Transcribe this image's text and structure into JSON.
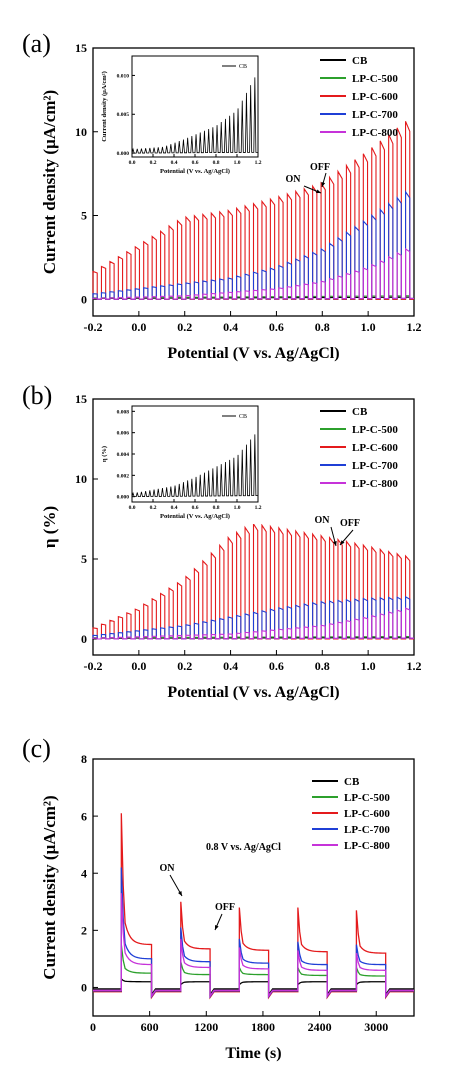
{
  "chart_data": [
    {
      "panel": "(a)",
      "type": "line",
      "xlabel": "Potential (V vs. Ag/AgCl)",
      "ylabel": "Current density (μA/cm²)",
      "xlim": [
        -0.2,
        1.2
      ],
      "ylim": [
        -1,
        15
      ],
      "xticks": [
        -0.2,
        0.0,
        0.2,
        0.4,
        0.6,
        0.8,
        1.0,
        1.2
      ],
      "xtick_labels": [
        "-0.2",
        "0.0",
        "0.2",
        "0.4",
        "0.6",
        "0.8",
        "1.0",
        "1.2"
      ],
      "yticks": [
        0,
        5,
        10,
        15
      ],
      "ytick_labels": [
        "0",
        "5",
        "10",
        "15"
      ],
      "legend_position": "top-right",
      "annotations": [
        {
          "text": "ON"
        },
        {
          "text": "OFF"
        }
      ],
      "chopped": {
        "x_start": -0.2,
        "x_end": 1.2,
        "cycles": 38
      },
      "series": [
        {
          "name": "CB",
          "color": "#000000",
          "on": [
            [
              -0.2,
              0.05
            ],
            [
              1.2,
              0.12
            ]
          ],
          "off": [
            [
              -0.2,
              0.0
            ],
            [
              1.2,
              0.0
            ]
          ]
        },
        {
          "name": "LP-C-500",
          "color": "#2ca02c",
          "on": [
            [
              -0.2,
              0.08
            ],
            [
              1.2,
              0.2
            ]
          ],
          "off": [
            [
              -0.2,
              0.0
            ],
            [
              1.2,
              0.05
            ]
          ]
        },
        {
          "name": "LP-C-600",
          "color": "#e41a1c",
          "on": [
            [
              -0.2,
              1.5
            ],
            [
              0.0,
              3.0
            ],
            [
              0.2,
              4.6
            ],
            [
              0.4,
              5.0
            ],
            [
              0.6,
              5.7
            ],
            [
              0.8,
              6.5
            ],
            [
              1.0,
              8.3
            ],
            [
              1.2,
              10.3
            ]
          ],
          "off": [
            [
              -0.2,
              0.0
            ],
            [
              1.2,
              0.0
            ]
          ]
        },
        {
          "name": "LP-C-700",
          "color": "#1f3fd6",
          "on": [
            [
              -0.2,
              0.3
            ],
            [
              0.0,
              0.6
            ],
            [
              0.2,
              0.9
            ],
            [
              0.4,
              1.2
            ],
            [
              0.6,
              1.8
            ],
            [
              0.8,
              2.8
            ],
            [
              1.0,
              4.5
            ],
            [
              1.2,
              6.3
            ]
          ],
          "off": [
            [
              -0.2,
              0.0
            ],
            [
              1.2,
              0.05
            ]
          ]
        },
        {
          "name": "LP-C-800",
          "color": "#c633d9",
          "on": [
            [
              -0.2,
              0.05
            ],
            [
              0.2,
              0.2
            ],
            [
              0.6,
              0.6
            ],
            [
              0.8,
              1.0
            ],
            [
              1.0,
              1.8
            ],
            [
              1.2,
              3.0
            ]
          ],
          "off": [
            [
              -0.2,
              0.0
            ],
            [
              1.2,
              0.05
            ]
          ]
        }
      ],
      "inset": {
        "xlabel": "Potential (V vs. Ag/AgCl)",
        "ylabel": "Current density (μA/cm²)",
        "xlim": [
          0.0,
          1.2
        ],
        "ylim": [
          -0.0005,
          0.0125
        ],
        "xticks": [
          0.0,
          0.2,
          0.4,
          0.6,
          0.8,
          1.0,
          1.2
        ],
        "xtick_labels": [
          "0.0",
          "0.2",
          "0.4",
          "0.6",
          "0.8",
          "1.0",
          "1.2"
        ],
        "yticks": [
          0.0,
          0.005,
          0.01
        ],
        "ytick_labels": [
          "0.000",
          "0.005",
          "0.010"
        ],
        "legend": "CB",
        "series": [
          {
            "name": "CB",
            "color": "#000000",
            "on": [
              [
                0.0,
                0.0005
              ],
              [
                0.3,
                0.0008
              ],
              [
                0.5,
                0.0018
              ],
              [
                0.8,
                0.0035
              ],
              [
                1.0,
                0.0055
              ],
              [
                1.2,
                0.0105
              ]
            ],
            "off": [
              [
                0.0,
                0.0
              ],
              [
                1.2,
                0.0001
              ]
            ]
          }
        ]
      }
    },
    {
      "panel": "(b)",
      "type": "line",
      "xlabel": "Potential (V vs. Ag/AgCl)",
      "ylabel": "η (%)",
      "xlim": [
        -0.2,
        1.2
      ],
      "ylim": [
        -1,
        15
      ],
      "xticks": [
        -0.2,
        0.0,
        0.2,
        0.4,
        0.6,
        0.8,
        1.0,
        1.2
      ],
      "xtick_labels": [
        "-0.2",
        "0.0",
        "0.2",
        "0.4",
        "0.6",
        "0.8",
        "1.0",
        "1.2"
      ],
      "yticks": [
        0,
        5,
        10,
        15
      ],
      "ytick_labels": [
        "0",
        "5",
        "10",
        "15"
      ],
      "legend_position": "top-right",
      "annotations": [
        {
          "text": "ON"
        },
        {
          "text": "OFF"
        }
      ],
      "chopped": {
        "x_start": -0.2,
        "x_end": 1.2,
        "cycles": 38
      },
      "series": [
        {
          "name": "CB",
          "color": "#000000",
          "on": [
            [
              -0.2,
              0.05
            ],
            [
              1.2,
              0.08
            ]
          ],
          "off": [
            [
              -0.2,
              0.0
            ],
            [
              1.2,
              0.0
            ]
          ]
        },
        {
          "name": "LP-C-500",
          "color": "#2ca02c",
          "on": [
            [
              -0.2,
              0.08
            ],
            [
              1.2,
              0.15
            ]
          ],
          "off": [
            [
              -0.2,
              0.0
            ],
            [
              1.2,
              0.03
            ]
          ]
        },
        {
          "name": "LP-C-600",
          "color": "#e41a1c",
          "on": [
            [
              -0.2,
              0.6
            ],
            [
              0.0,
              1.8
            ],
            [
              0.2,
              3.5
            ],
            [
              0.4,
              6.0
            ],
            [
              0.5,
              6.8
            ],
            [
              0.6,
              6.6
            ],
            [
              0.8,
              6.1
            ],
            [
              1.0,
              5.5
            ],
            [
              1.2,
              4.8
            ]
          ],
          "off": [
            [
              -0.2,
              0.0
            ],
            [
              1.2,
              0.0
            ]
          ]
        },
        {
          "name": "LP-C-700",
          "color": "#1f3fd6",
          "on": [
            [
              -0.2,
              0.2
            ],
            [
              0.2,
              0.8
            ],
            [
              0.4,
              1.3
            ],
            [
              0.6,
              1.8
            ],
            [
              0.8,
              2.2
            ],
            [
              1.0,
              2.4
            ],
            [
              1.2,
              2.5
            ]
          ],
          "off": [
            [
              -0.2,
              0.0
            ],
            [
              1.2,
              0.05
            ]
          ]
        },
        {
          "name": "LP-C-800",
          "color": "#c633d9",
          "on": [
            [
              -0.2,
              0.05
            ],
            [
              0.4,
              0.3
            ],
            [
              0.8,
              0.8
            ],
            [
              1.0,
              1.3
            ],
            [
              1.2,
              1.9
            ]
          ],
          "off": [
            [
              -0.2,
              0.0
            ],
            [
              1.2,
              0.05
            ]
          ]
        }
      ],
      "inset": {
        "xlabel": "Potential (V vs. Ag/AgCl)",
        "ylabel": "η (%)",
        "xlim": [
          0.0,
          1.2
        ],
        "ylim": [
          -0.0005,
          0.0085
        ],
        "xticks": [
          0.0,
          0.2,
          0.4,
          0.6,
          0.8,
          1.0,
          1.2
        ],
        "xtick_labels": [
          "0.0",
          "0.2",
          "0.4",
          "0.6",
          "0.8",
          "1.0",
          "1.2"
        ],
        "yticks": [
          0.0,
          0.002,
          0.004,
          0.006,
          0.008
        ],
        "ytick_labels": [
          "0.000",
          "0.002",
          "0.004",
          "0.006",
          "0.008"
        ],
        "legend": "CB",
        "series": [
          {
            "name": "CB",
            "color": "#000000",
            "on": [
              [
                0.0,
                0.0003
              ],
              [
                0.4,
                0.001
              ],
              [
                0.6,
                0.0018
              ],
              [
                0.8,
                0.0028
              ],
              [
                1.0,
                0.0038
              ],
              [
                1.2,
                0.0062
              ]
            ],
            "off": [
              [
                0.0,
                0.0
              ],
              [
                1.2,
                0.0001
              ]
            ]
          }
        ]
      }
    },
    {
      "panel": "(c)",
      "type": "line",
      "xlabel": "Time (s)",
      "ylabel": "Current density (μA/cm²)",
      "xlim": [
        0,
        3400
      ],
      "ylim": [
        -1,
        8
      ],
      "xticks": [
        0,
        600,
        1200,
        1800,
        2400,
        3000
      ],
      "xtick_labels": [
        "0",
        "600",
        "1200",
        "1800",
        "2400",
        "3000"
      ],
      "yticks": [
        0,
        2,
        4,
        6,
        8
      ],
      "ytick_labels": [
        "0",
        "2",
        "4",
        "6",
        "8"
      ],
      "legend_position": "top-right",
      "annotations": [
        {
          "text": "0.8 V vs. Ag/AgCl"
        },
        {
          "text": "ON"
        },
        {
          "text": "OFF"
        }
      ],
      "on_intervals": [
        [
          300,
          620
        ],
        [
          930,
          1240
        ],
        [
          1550,
          1860
        ],
        [
          2170,
          2480
        ],
        [
          2790,
          3100
        ]
      ],
      "series": [
        {
          "name": "CB",
          "color": "#000000",
          "spike": [
            0.3,
            0.1,
            0.1,
            0.1,
            0.1
          ],
          "plateau": [
            0.2,
            0.2,
            0.2,
            0.2,
            0.2
          ],
          "dark": -0.05
        },
        {
          "name": "LP-C-500",
          "color": "#2ca02c",
          "spike": [
            1.5,
            0.9,
            0.7,
            0.7,
            0.7
          ],
          "plateau": [
            0.5,
            0.45,
            0.45,
            0.42,
            0.4
          ],
          "dark": -0.1
        },
        {
          "name": "LP-C-600",
          "color": "#e41a1c",
          "spike": [
            6.1,
            3.0,
            2.8,
            2.8,
            2.7
          ],
          "plateau": [
            1.5,
            1.35,
            1.3,
            1.25,
            1.2
          ],
          "dark": -0.15
        },
        {
          "name": "LP-C-700",
          "color": "#1f3fd6",
          "spike": [
            4.2,
            2.1,
            1.7,
            1.6,
            1.5
          ],
          "plateau": [
            1.0,
            0.9,
            0.85,
            0.8,
            0.8
          ],
          "dark": -0.12
        },
        {
          "name": "LP-C-800",
          "color": "#c633d9",
          "spike": [
            3.3,
            1.7,
            1.4,
            1.3,
            1.2
          ],
          "plateau": [
            0.8,
            0.7,
            0.65,
            0.6,
            0.6
          ],
          "dark": -0.1
        }
      ]
    }
  ]
}
